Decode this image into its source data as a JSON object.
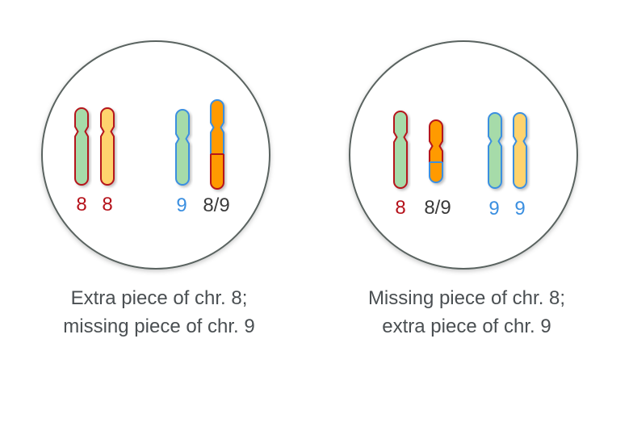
{
  "colors": {
    "red_outline": "#b5121b",
    "blue_outline": "#3b8fe0",
    "green_fill": "#a6dba9",
    "yellow_fill": "#ffd36e",
    "orange_fill": "#ff9a00",
    "circle_stroke": "#5a6461",
    "label_red": "#b5121b",
    "label_blue": "#3b8fe0",
    "label_dark": "#3a3a3a"
  },
  "panels": [
    {
      "chromosomes": [
        {
          "label": "8",
          "label_color": "red",
          "parts": [
            {
              "fill": "green",
              "stroke": "red"
            }
          ]
        },
        {
          "label": "8",
          "label_color": "red",
          "parts": [
            {
              "fill": "yellow",
              "stroke": "red"
            }
          ]
        },
        {
          "label": "9",
          "label_color": "blue",
          "parts": [
            {
              "fill": "green",
              "stroke": "blue"
            }
          ]
        },
        {
          "label": "8/9",
          "label_color": "dark",
          "parts": [
            {
              "fill": "orange",
              "stroke": "blue"
            },
            {
              "fill": "orange",
              "stroke": "red"
            }
          ]
        }
      ],
      "caption": [
        "Extra piece of chr. 8;",
        "missing piece of chr. 9"
      ]
    },
    {
      "chromosomes": [
        {
          "label": "8",
          "label_color": "red",
          "parts": [
            {
              "fill": "green",
              "stroke": "red"
            }
          ]
        },
        {
          "label": "8/9",
          "label_color": "dark",
          "parts": [
            {
              "fill": "orange",
              "stroke": "red"
            },
            {
              "fill": "orange",
              "stroke": "blue"
            }
          ]
        },
        {
          "label": "9",
          "label_color": "blue",
          "parts": [
            {
              "fill": "green",
              "stroke": "blue"
            }
          ]
        },
        {
          "label": "9",
          "label_color": "blue",
          "parts": [
            {
              "fill": "yellow",
              "stroke": "blue"
            }
          ]
        }
      ],
      "caption": [
        "Missing piece of chr. 8;",
        "extra piece of chr. 9"
      ]
    }
  ]
}
